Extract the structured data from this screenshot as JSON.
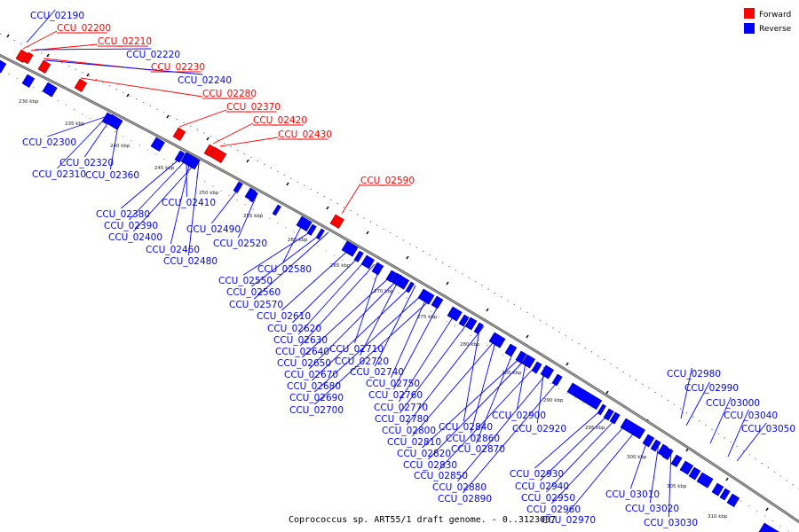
{
  "colors": {
    "forward": "#ff0000",
    "reverse": "#0000ff",
    "backbone": "#888888"
  },
  "legend": {
    "forward_label": "Forward",
    "reverse_label": "Reverse"
  },
  "caption": "Coprococcus sp. ART55/1 draft genome. - 0..3123007",
  "ticks": [
    "230 kbp",
    "235 kbp",
    "240 kbp",
    "245 kbp",
    "250 kbp",
    "255 kbp",
    "260 kbp",
    "265 kbp",
    "270 kbp",
    "275 kbp",
    "280 kbp",
    "285 kbp",
    "290 kbp",
    "295 kbp",
    "300 kbp",
    "305 kbp",
    "310 kbp"
  ],
  "forward_labels": [
    "CCU_02200",
    "CCU_02210",
    "CCU_02230",
    "CCU_02280",
    "CCU_02370",
    "CCU_02420",
    "CCU_02430",
    "CCU_02590"
  ],
  "reverse_labels": [
    "CCU_02190",
    "CCU_02220",
    "CCU_02240",
    "CCU_02300",
    "CCU_02320",
    "CCU_02310",
    "CCU_02360",
    "CCU_02410",
    "CCU_02380",
    "CCU_02390",
    "CCU_02400",
    "CCU_02490",
    "CCU_02460",
    "CCU_02520",
    "CCU_02480",
    "CCU_02580",
    "CCU_02550",
    "CCU_02560",
    "CCU_02570",
    "CCU_02610",
    "CCU_02620",
    "CCU_02630",
    "CCU_02640",
    "CCU_02710",
    "CCU_02650",
    "CCU_02720",
    "CCU_02670",
    "CCU_02740",
    "CCU_02680",
    "CCU_02750",
    "CCU_02690",
    "CCU_02760",
    "CCU_02700",
    "CCU_02770",
    "CCU_02780",
    "CCU_02840",
    "CCU_02900",
    "CCU_02800",
    "CCU_02860",
    "CCU_02920",
    "CCU_02810",
    "CCU_02870",
    "CCU_02820",
    "CCU_02830",
    "CCU_02850",
    "CCU_02880",
    "CCU_02890",
    "CCU_02930",
    "CCU_02940",
    "CCU_02950",
    "CCU_02960",
    "CCU_02970",
    "CCU_02980",
    "CCU_02990",
    "CCU_03000",
    "CCU_03040",
    "CCU_03050",
    "CCU_03010",
    "CCU_03020",
    "CCU_03030"
  ]
}
